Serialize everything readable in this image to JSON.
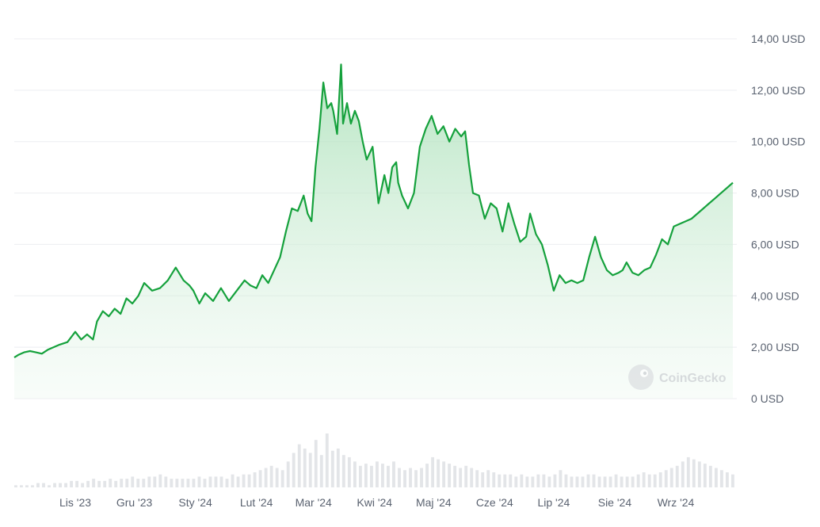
{
  "chart_data": {
    "type": "area",
    "y_tick_labels": [
      "14,00 USD",
      "12,00 USD",
      "10,00 USD",
      "8,00 USD",
      "6,00 USD",
      "4,00 USD",
      "2,00 USD",
      "0 USD"
    ],
    "y_tick_values": [
      14,
      12,
      10,
      8,
      6,
      4,
      2,
      0
    ],
    "ylim": [
      0,
      14
    ],
    "x_tick_labels": [
      "Lis '23",
      "Gru '23",
      "Sty '24",
      "Lut '24",
      "Mar '24",
      "Kwi '24",
      "Maj '24",
      "Cze '24",
      "Lip '24",
      "Sie '24",
      "Wrz '24"
    ],
    "x_tick_dates": [
      "2023-11-01",
      "2023-12-01",
      "2024-01-01",
      "2024-02-01",
      "2024-03-01",
      "2024-04-01",
      "2024-05-01",
      "2024-06-01",
      "2024-07-01",
      "2024-08-01",
      "2024-09-01"
    ],
    "grid": true,
    "series": [
      {
        "x": [
          "2023-10-01",
          "2023-10-03",
          "2023-10-06",
          "2023-10-09",
          "2023-10-12",
          "2023-10-15",
          "2023-10-18",
          "2023-10-21",
          "2023-10-24",
          "2023-10-28",
          "2023-11-01",
          "2023-11-04",
          "2023-11-07",
          "2023-11-10",
          "2023-11-12",
          "2023-11-15",
          "2023-11-18",
          "2023-11-21",
          "2023-11-24",
          "2023-11-27",
          "2023-11-30",
          "2023-12-03",
          "2023-12-06",
          "2023-12-10",
          "2023-12-14",
          "2023-12-18",
          "2023-12-22",
          "2023-12-26",
          "2023-12-29",
          "2023-12-31",
          "2024-01-03",
          "2024-01-06",
          "2024-01-10",
          "2024-01-14",
          "2024-01-18",
          "2024-01-22",
          "2024-01-26",
          "2024-01-29",
          "2024-02-01",
          "2024-02-04",
          "2024-02-07",
          "2024-02-10",
          "2024-02-13",
          "2024-02-16",
          "2024-02-19",
          "2024-02-22",
          "2024-02-25",
          "2024-02-27",
          "2024-02-29",
          "2024-03-02",
          "2024-03-04",
          "2024-03-06",
          "2024-03-08",
          "2024-03-10",
          "2024-03-11",
          "2024-03-13",
          "2024-03-15",
          "2024-03-16",
          "2024-03-18",
          "2024-03-20",
          "2024-03-22",
          "2024-03-24",
          "2024-03-26",
          "2024-03-28",
          "2024-03-31",
          "2024-04-03",
          "2024-04-06",
          "2024-04-08",
          "2024-04-10",
          "2024-04-12",
          "2024-04-13",
          "2024-04-15",
          "2024-04-18",
          "2024-04-21",
          "2024-04-24",
          "2024-04-27",
          "2024-04-30",
          "2024-05-03",
          "2024-05-06",
          "2024-05-09",
          "2024-05-12",
          "2024-05-15",
          "2024-05-17",
          "2024-05-19",
          "2024-05-21",
          "2024-05-24",
          "2024-05-27",
          "2024-05-30",
          "2024-06-02",
          "2024-06-05",
          "2024-06-08",
          "2024-06-11",
          "2024-06-14",
          "2024-06-17",
          "2024-06-19",
          "2024-06-22",
          "2024-06-25",
          "2024-06-28",
          "2024-07-01",
          "2024-07-04",
          "2024-07-07",
          "2024-07-10",
          "2024-07-13",
          "2024-07-16",
          "2024-07-19",
          "2024-07-22",
          "2024-07-25",
          "2024-07-28",
          "2024-07-31",
          "2024-08-03",
          "2024-08-05",
          "2024-08-07",
          "2024-08-10",
          "2024-08-13",
          "2024-08-16",
          "2024-08-19",
          "2024-08-22",
          "2024-08-25",
          "2024-08-28",
          "2024-08-31",
          "2024-09-03",
          "2024-09-06",
          "2024-09-09",
          "2024-09-12",
          "2024-09-15",
          "2024-09-18",
          "2024-09-21",
          "2024-09-24",
          "2024-09-27",
          "2024-09-30"
        ],
        "y": [
          1.6,
          1.7,
          1.8,
          1.85,
          1.8,
          1.75,
          1.9,
          2.0,
          2.1,
          2.2,
          2.6,
          2.3,
          2.5,
          2.3,
          3.0,
          3.4,
          3.2,
          3.5,
          3.3,
          3.9,
          3.7,
          4.0,
          4.5,
          4.2,
          4.3,
          4.6,
          5.1,
          4.6,
          4.4,
          4.2,
          3.7,
          4.1,
          3.8,
          4.3,
          3.8,
          4.2,
          4.6,
          4.4,
          4.3,
          4.8,
          4.5,
          5.0,
          5.5,
          6.5,
          7.4,
          7.3,
          7.9,
          7.2,
          6.9,
          9.0,
          10.5,
          12.3,
          11.3,
          11.5,
          11.2,
          10.3,
          13.0,
          10.7,
          11.5,
          10.7,
          11.2,
          10.8,
          10.0,
          9.3,
          9.8,
          7.6,
          8.7,
          8.0,
          9.0,
          9.2,
          8.4,
          7.9,
          7.4,
          8.0,
          9.8,
          10.5,
          11.0,
          10.3,
          10.6,
          10.0,
          10.5,
          10.2,
          10.4,
          9.1,
          8.0,
          7.9,
          7.0,
          7.6,
          7.4,
          6.5,
          7.6,
          6.8,
          6.1,
          6.3,
          7.2,
          6.4,
          6.0,
          5.2,
          4.2,
          4.8,
          4.5,
          4.6,
          4.5,
          4.6,
          5.5,
          6.3,
          5.5,
          5.0,
          4.8,
          4.9,
          5.0,
          5.3,
          4.9,
          4.8,
          5.0,
          5.1,
          5.6,
          6.2,
          6.0,
          6.7,
          6.8,
          6.9,
          7.0,
          7.2,
          7.4,
          7.6,
          7.8,
          8.0,
          8.2,
          8.4
        ]
      }
    ],
    "volume_note": "relative volume bars",
    "volume": [
      1,
      1,
      1,
      1,
      2,
      2,
      1,
      2,
      2,
      2,
      3,
      3,
      2,
      3,
      4,
      3,
      3,
      4,
      3,
      4,
      4,
      5,
      4,
      4,
      5,
      5,
      6,
      5,
      4,
      4,
      4,
      4,
      4,
      5,
      4,
      5,
      5,
      5,
      4,
      6,
      5,
      6,
      6,
      7,
      8,
      9,
      10,
      9,
      8,
      12,
      16,
      20,
      18,
      16,
      22,
      15,
      25,
      17,
      18,
      15,
      14,
      12,
      10,
      11,
      10,
      12,
      11,
      10,
      12,
      9,
      8,
      9,
      8,
      9,
      11,
      14,
      13,
      12,
      11,
      10,
      9,
      10,
      9,
      8,
      7,
      8,
      7,
      6,
      6,
      6,
      5,
      6,
      5,
      5,
      6,
      6,
      5,
      6,
      8,
      6,
      5,
      5,
      5,
      6,
      6,
      5,
      5,
      5,
      6,
      5,
      5,
      5,
      6,
      7,
      6,
      6,
      7,
      8,
      9,
      10,
      12,
      14,
      13,
      12,
      11,
      10,
      9,
      8,
      7,
      6
    ]
  },
  "watermark": {
    "brand": "CoinGecko"
  },
  "colors": {
    "line": "#15a13c",
    "fill_top": "#bfe7c9",
    "grid": "#eceef0",
    "volume": "#e3e5e8",
    "tick_text": "#5a6270"
  }
}
